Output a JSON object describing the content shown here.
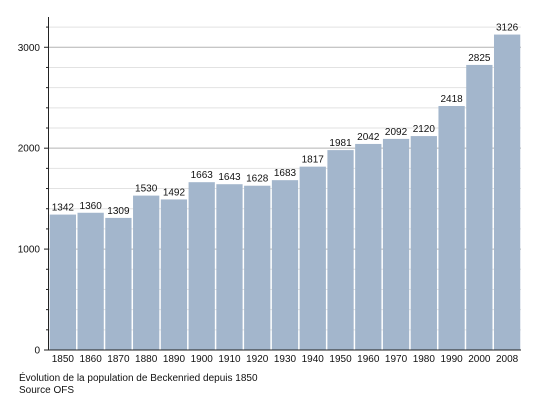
{
  "chart_data": {
    "type": "bar",
    "categories": [
      "1850",
      "1860",
      "1870",
      "1880",
      "1890",
      "1900",
      "1910",
      "1920",
      "1930",
      "1940",
      "1950",
      "1960",
      "1970",
      "1980",
      "1990",
      "2000",
      "2008"
    ],
    "values": [
      1342,
      1360,
      1309,
      1530,
      1492,
      1663,
      1643,
      1628,
      1683,
      1817,
      1981,
      2042,
      2092,
      2120,
      2418,
      2825,
      3126
    ],
    "ylim": [
      0,
      3300
    ],
    "yticks": [
      0,
      1000,
      2000,
      3000
    ],
    "grid": true,
    "bar_color": "#a3b6cc",
    "data_labels": true
  },
  "caption": {
    "line1": "Évolution de la population de Beckenried depuis 1850",
    "line2": "Source OFS"
  }
}
